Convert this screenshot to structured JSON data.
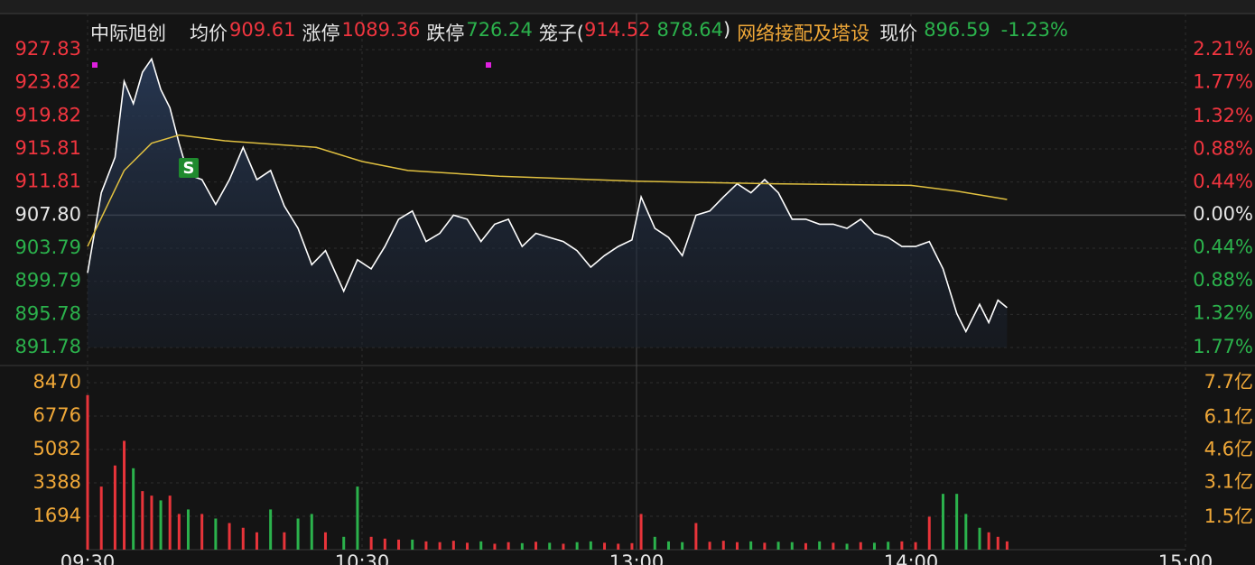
{
  "chart_data": [
    {
      "type": "line",
      "quote": {
        "name": "中际旭创",
        "avg_label": "均价",
        "avg": "909.61",
        "limit_up_label": "涨停",
        "limit_up": "1089.36",
        "limit_down_label": "跌停",
        "limit_down": "726.24",
        "cage_label": "笼子(",
        "cage_high": "914.52",
        "cage_low": "878.64",
        "cage_close": ")",
        "sector": "网络接配及塔设",
        "price_label": "现价",
        "price": "896.59",
        "change": "-1.23%"
      },
      "annotations": [
        "S"
      ],
      "xlim": [
        0,
        240
      ],
      "x": [
        0,
        3,
        6,
        8,
        10,
        12,
        14,
        16,
        18,
        20,
        22,
        25,
        28,
        31,
        34,
        37,
        40,
        43,
        46,
        49,
        52,
        56,
        59,
        62,
        65,
        68,
        71,
        74,
        77,
        80,
        83,
        86,
        89,
        92,
        95,
        98,
        101,
        104,
        107,
        110,
        113,
        116,
        119,
        121,
        124,
        127,
        130,
        133,
        136,
        139,
        142,
        145,
        148,
        151,
        154,
        157,
        160,
        163,
        166,
        169,
        172,
        175,
        178,
        181,
        184,
        187,
        190,
        192,
        195,
        197,
        199,
        201
      ],
      "series": [
        {
          "color": "#ffffff",
          "values": [
            900.8,
            910.5,
            914.8,
            924,
            921.3,
            925.1,
            926.7,
            923,
            920.8,
            916.5,
            912.7,
            912.1,
            909.1,
            912.1,
            916,
            912.1,
            913.2,
            908.9,
            906.2,
            901.8,
            903.5,
            898.6,
            902.4,
            901.3,
            904,
            907.3,
            908.3,
            904.6,
            905.6,
            907.8,
            907.3,
            904.6,
            906.7,
            907.3,
            904,
            905.6,
            905.1,
            904.6,
            903.5,
            901.5,
            902.9,
            904,
            904.8,
            910,
            906.2,
            905.1,
            902.9,
            907.8,
            908.3,
            910,
            911.6,
            910.5,
            912.1,
            910.5,
            907.3,
            907.3,
            906.7,
            906.7,
            906.2,
            907.3,
            905.6,
            905.1,
            904,
            904,
            904.6,
            901.3,
            895.9,
            893.7,
            897,
            894.8,
            897.5,
            896.6
          ]
        },
        {
          "color": "#e0c040",
          "x": [
            0,
            8,
            14,
            20,
            30,
            50,
            60,
            70,
            90,
            120,
            150,
            180,
            190,
            201
          ],
          "values": [
            904,
            913.2,
            916.5,
            917.5,
            916.8,
            916,
            914.3,
            913.2,
            912.5,
            911.9,
            911.6,
            911.4,
            910.7,
            909.7
          ]
        }
      ],
      "ylim": [
        891.78,
        927.83
      ],
      "baseline": 907.8,
      "yticks": [
        927.83,
        923.82,
        919.82,
        915.81,
        911.81,
        {
          "value": 907.8,
          "label": "907.80"
        },
        903.79,
        899.79,
        895.78,
        891.78
      ],
      "y2lim": [
        -1.77,
        2.21
      ],
      "y2ticks": [
        {
          "value": 2.21,
          "label": "2.21%"
        },
        {
          "value": 1.77,
          "label": "1.77%"
        },
        {
          "value": 1.32,
          "label": "1.32%"
        },
        {
          "value": 0.88,
          "label": "0.88%"
        },
        {
          "value": 0.44,
          "label": "0.44%"
        },
        {
          "value": 0,
          "label": "0.00%"
        },
        {
          "value": -0.44,
          "label": "0.44%"
        },
        {
          "value": -0.88,
          "label": "0.88%"
        },
        {
          "value": -1.32,
          "label": "1.32%"
        },
        {
          "value": -1.77,
          "label": "1.77%"
        }
      ],
      "up_color": "#f0353f",
      "down_color": "#2bb24c",
      "grid": true
    },
    {
      "type": "bar",
      "xlim": [
        0,
        240
      ],
      "xticks": [
        {
          "value": 0,
          "label": "09:30"
        },
        {
          "value": 60,
          "label": "10:30"
        },
        {
          "value": 120,
          "label": "13:00"
        },
        {
          "value": 180,
          "label": "14:00"
        },
        {
          "value": 240,
          "label": "15:00"
        }
      ],
      "x": [
        0,
        3,
        6,
        8,
        10,
        12,
        14,
        16,
        18,
        20,
        22,
        25,
        28,
        31,
        34,
        37,
        40,
        43,
        46,
        49,
        52,
        56,
        59,
        62,
        65,
        68,
        71,
        74,
        77,
        80,
        83,
        86,
        89,
        92,
        95,
        98,
        101,
        104,
        107,
        110,
        113,
        116,
        119,
        121,
        124,
        127,
        130,
        133,
        136,
        139,
        142,
        145,
        148,
        151,
        154,
        157,
        160,
        163,
        166,
        169,
        172,
        175,
        178,
        181,
        184,
        187,
        190,
        192,
        195,
        197,
        199,
        201
      ],
      "values": [
        7840,
        3200,
        4270,
        5520,
        4130,
        2970,
        2740,
        2500,
        2740,
        1810,
        2040,
        1810,
        1580,
        1350,
        1110,
        880,
        2040,
        880,
        1580,
        1810,
        880,
        650,
        3200,
        650,
        560,
        510,
        510,
        420,
        380,
        450,
        350,
        420,
        300,
        380,
        330,
        400,
        350,
        300,
        380,
        420,
        350,
        300,
        330,
        1810,
        650,
        420,
        380,
        1350,
        400,
        450,
        380,
        420,
        350,
        400,
        380,
        330,
        420,
        350,
        300,
        380,
        350,
        400,
        420,
        380,
        1670,
        2830,
        2830,
        1810,
        1110,
        880,
        650,
        420
      ],
      "colors": [
        "#e8343a",
        "#e8343a",
        "#e8343a",
        "#e8343a",
        "#2bb24c",
        "#e8343a",
        "#e8343a",
        "#2bb24c",
        "#e8343a",
        "#e8343a",
        "#2bb24c",
        "#e8343a",
        "#2bb24c",
        "#e8343a",
        "#e8343a",
        "#e8343a",
        "#2bb24c",
        "#e8343a",
        "#2bb24c",
        "#2bb24c",
        "#e8343a",
        "#2bb24c",
        "#2bb24c",
        "#e8343a",
        "#e8343a",
        "#e8343a",
        "#2bb24c",
        "#e8343a",
        "#e8343a",
        "#e8343a",
        "#e8343a",
        "#2bb24c",
        "#e8343a",
        "#e8343a",
        "#2bb24c",
        "#e8343a",
        "#2bb24c",
        "#e8343a",
        "#2bb24c",
        "#2bb24c",
        "#e8343a",
        "#e8343a",
        "#e8343a",
        "#e8343a",
        "#2bb24c",
        "#2bb24c",
        "#2bb24c",
        "#e8343a",
        "#e8343a",
        "#e8343a",
        "#e8343a",
        "#2bb24c",
        "#e8343a",
        "#2bb24c",
        "#2bb24c",
        "#e8343a",
        "#2bb24c",
        "#e8343a",
        "#2bb24c",
        "#e8343a",
        "#2bb24c",
        "#2bb24c",
        "#e8343a",
        "#e8343a",
        "#e8343a",
        "#2bb24c",
        "#2bb24c",
        "#2bb24c",
        "#2bb24c",
        "#e8343a",
        "#e8343a",
        "#e8343a"
      ],
      "ylim": [
        0,
        8470
      ],
      "yticks": [
        1694,
        3388,
        5082,
        6776,
        8470
      ],
      "y2lim": [
        0,
        7.7
      ],
      "y2ticks": [
        {
          "value": 1.5,
          "label": "1.5亿"
        },
        {
          "value": 3.1,
          "label": "3.1亿"
        },
        {
          "value": 4.6,
          "label": "4.6亿"
        },
        {
          "value": 6.1,
          "label": "6.1亿"
        },
        {
          "value": 7.7,
          "label": "7.7亿"
        }
      ],
      "tick_color": "#f0a838",
      "grid": true
    }
  ]
}
